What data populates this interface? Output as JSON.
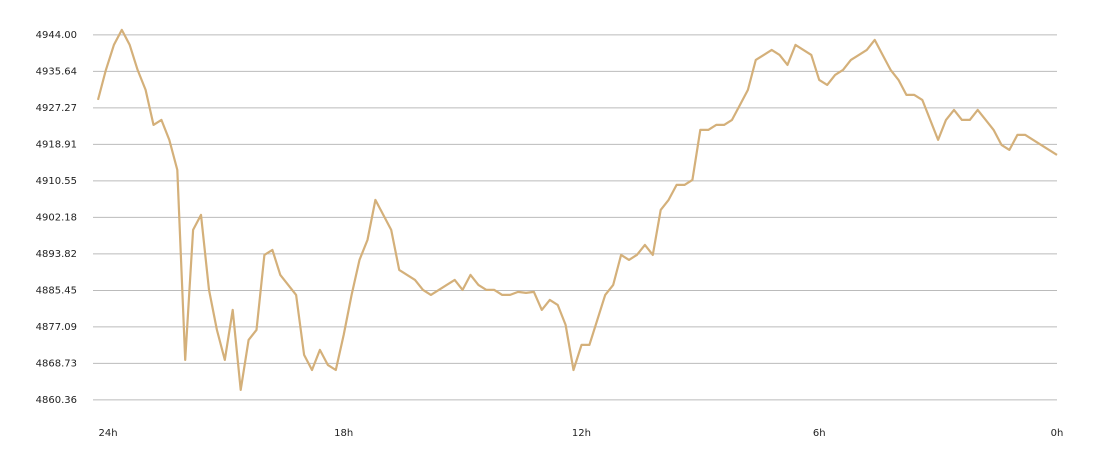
{
  "chart_data": {
    "type": "line",
    "x": [
      24.2,
      24,
      23.8,
      23.6,
      23.4,
      23.2,
      23,
      22.8,
      22.6,
      22.4,
      22.2,
      22,
      21.8,
      21.6,
      21.4,
      21.2,
      21,
      20.8,
      20.6,
      20.4,
      20.2,
      20,
      19.8,
      19.6,
      19.4,
      19.2,
      19,
      18.8,
      18.6,
      18.4,
      18.2,
      18,
      17.8,
      17.6,
      17.4,
      17.2,
      17,
      16.8,
      16.6,
      16.4,
      16.2,
      16,
      15.8,
      15.6,
      15.4,
      15.2,
      15,
      14.8,
      14.6,
      14.4,
      14.2,
      14,
      13.8,
      13.6,
      13.4,
      13.2,
      13,
      12.8,
      12.6,
      12.4,
      12.2,
      12,
      11.8,
      11.6,
      11.4,
      11.2,
      11,
      10.8,
      10.6,
      10.4,
      10.2,
      10,
      9.8,
      9.6,
      9.4,
      9.2,
      9,
      8.8,
      8.6,
      8.4,
      8.2,
      8,
      7.8,
      7.6,
      7.4,
      7.2,
      7,
      6.8,
      6.6,
      6.4,
      6.2,
      6,
      5.8,
      5.6,
      5.4,
      5.2,
      5,
      4.8,
      4.6,
      4.4,
      4.2,
      4,
      3.8,
      3.6,
      3.4,
      3.2,
      3,
      2.8,
      2.6,
      2.4,
      2.2,
      2,
      1.8,
      1.6,
      1.4,
      1.2,
      1,
      0.8,
      0.6,
      0.4,
      0
    ],
    "series": [
      {
        "color": "#d4b07a",
        "values": [
          4929.11,
          4935.98,
          4941.71,
          4945.15,
          4941.71,
          4935.98,
          4931.4,
          4923.38,
          4924.52,
          4919.94,
          4913.06,
          4869.53,
          4899.32,
          4902.75,
          4885.57,
          4876.4,
          4869.53,
          4880.98,
          4862.65,
          4874.11,
          4876.4,
          4893.59,
          4894.73,
          4889.0,
          4886.71,
          4884.42,
          4870.67,
          4867.23,
          4871.82,
          4868.38,
          4867.23,
          4875.26,
          4884.42,
          4892.44,
          4897.03,
          4906.19,
          4902.75,
          4899.32,
          4890.15,
          4889.0,
          4887.86,
          4885.57,
          4884.42,
          4885.57,
          4886.71,
          4887.86,
          4885.57,
          4889.0,
          4886.71,
          4885.57,
          4885.57,
          4884.42,
          4884.42,
          4885.11,
          4884.88,
          4885.11,
          4880.98,
          4883.28,
          4882.13,
          4877.55,
          4867.23,
          4872.96,
          4872.96,
          4878.69,
          4884.42,
          4886.71,
          4893.59,
          4892.44,
          4893.59,
          4895.88,
          4893.59,
          4903.9,
          4906.19,
          4909.63,
          4909.63,
          4910.77,
          4922.23,
          4922.23,
          4923.38,
          4923.38,
          4924.52,
          4927.96,
          4931.4,
          4938.27,
          4939.42,
          4940.56,
          4939.42,
          4937.13,
          4941.71,
          4940.56,
          4939.42,
          4933.69,
          4932.54,
          4934.83,
          4935.98,
          4938.27,
          4939.42,
          4940.56,
          4942.85,
          4939.42,
          4935.98,
          4933.69,
          4930.25,
          4930.25,
          4929.11,
          4924.52,
          4919.94,
          4924.52,
          4926.81,
          4924.52,
          4924.52,
          4926.81,
          4924.52,
          4922.23,
          4918.79,
          4917.65,
          4921.09,
          4921.09,
          4919.94,
          4918.79,
          4916.5
        ]
      }
    ],
    "xlim": [
      24.2,
      0
    ],
    "xticks": [
      {
        "value": 24,
        "label": "24h"
      },
      {
        "value": 18,
        "label": "18h"
      },
      {
        "value": 12,
        "label": "12h"
      },
      {
        "value": 6,
        "label": "6h"
      },
      {
        "value": 0,
        "label": "0h"
      }
    ],
    "ylim": [
      4859.2,
      4946.5
    ],
    "yticks": [
      {
        "value": 4944,
        "label": "4944.00"
      },
      {
        "value": 4935.64,
        "label": "4935.64"
      },
      {
        "value": 4927.27,
        "label": "4927.27"
      },
      {
        "value": 4918.91,
        "label": "4918.91"
      },
      {
        "value": 4910.55,
        "label": "4910.55"
      },
      {
        "value": 4902.18,
        "label": "4902.18"
      },
      {
        "value": 4893.82,
        "label": "4893.82"
      },
      {
        "value": 4885.45,
        "label": "4885.45"
      },
      {
        "value": 4877.09,
        "label": "4877.09"
      },
      {
        "value": 4868.73,
        "label": "4868.73"
      },
      {
        "value": 4860.36,
        "label": "4860.36"
      }
    ],
    "grid": true
  }
}
